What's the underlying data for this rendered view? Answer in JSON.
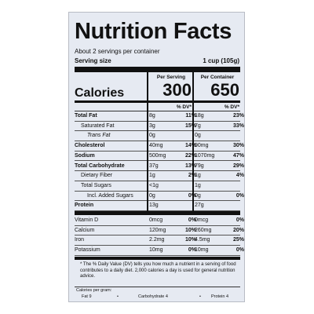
{
  "header": {
    "title": "Nutrition Facts",
    "servings": "About 2 servings per container",
    "serving_size_label": "Serving size",
    "serving_size": "1 cup (105g)"
  },
  "columns": {
    "per_serving": "Per Serving",
    "per_container": "Per Container"
  },
  "calories": {
    "label": "Calories",
    "per_serving": "300",
    "per_container": "650"
  },
  "dv_header": {
    "per_serving": "% DV*",
    "per_container": "% DV*"
  },
  "rows": [
    {
      "name": "Total Fat",
      "serving": {
        "amount": "8g",
        "dv": "11%"
      },
      "container": {
        "amount": "18g",
        "dv": "23%"
      }
    },
    {
      "name": "Saturated Fat",
      "serving": {
        "amount": "3g",
        "dv": "15%"
      },
      "container": {
        "amount": "7g",
        "dv": "33%"
      }
    },
    {
      "name": "Trans Fat",
      "serving": {
        "amount": "0g"
      },
      "container": {
        "amount": "0g"
      }
    },
    {
      "name": "Cholesterol",
      "serving": {
        "amount": "40mg",
        "dv": "14%"
      },
      "container": {
        "amount": "90mg",
        "dv": "30%"
      }
    },
    {
      "name": "Sodium",
      "serving": {
        "amount": "500mg",
        "dv": "22%"
      },
      "container": {
        "amount": "1070mg",
        "dv": "47%"
      }
    },
    {
      "name": "Total Carbohydrate",
      "serving": {
        "amount": "37g",
        "dv": "13%"
      },
      "container": {
        "amount": "79g",
        "dv": "29%"
      }
    },
    {
      "name": "Dietary Fiber",
      "serving": {
        "amount": "1g",
        "dv": "2%"
      },
      "container": {
        "amount": "1g",
        "dv": "4%"
      }
    },
    {
      "name": "Total Sugars",
      "serving": {
        "amount": "<1g"
      },
      "container": {
        "amount": "1g"
      }
    },
    {
      "name": "Incl. Added Sugars",
      "serving": {
        "amount": "0g",
        "dv": "0%"
      },
      "container": {
        "amount": "0g",
        "dv": "0%"
      }
    },
    {
      "name": "Protein",
      "serving": {
        "amount": "13g"
      },
      "container": {
        "amount": "27g"
      }
    }
  ],
  "vitamins": [
    {
      "name": "Vitamin D",
      "serving": {
        "amount": "0mcg",
        "dv": "0%"
      },
      "container": {
        "amount": "0mcg",
        "dv": "0%"
      }
    },
    {
      "name": "Calcium",
      "serving": {
        "amount": "120mg",
        "dv": "10%"
      },
      "container": {
        "amount": "260mg",
        "dv": "20%"
      }
    },
    {
      "name": "Iron",
      "serving": {
        "amount": "2.2mg",
        "dv": "10%"
      },
      "container": {
        "amount": "4.5mg",
        "dv": "25%"
      }
    },
    {
      "name": "Potassium",
      "serving": {
        "amount": "10mg",
        "dv": "0%"
      },
      "container": {
        "amount": "10mg",
        "dv": "0%"
      }
    }
  ],
  "footnote": "* The % Daily Value (DV) tells you how much a nutrient in a serving of food contributes to a daily diet. 2,000 calories a day is used for general nutrition advice.",
  "calories_per_gram": {
    "label": "Calories per gram:",
    "items": [
      "Fat 9",
      "Carbohydrate 4",
      "Protein 4"
    ],
    "separator": "•"
  }
}
